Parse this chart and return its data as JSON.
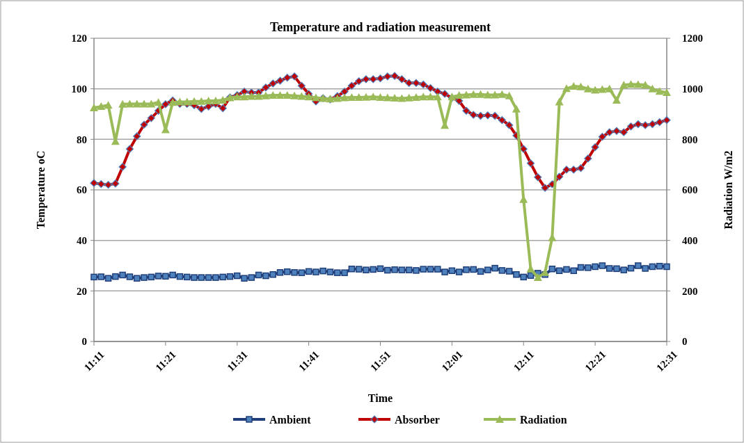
{
  "chart_data": {
    "type": "line",
    "title": "Temperature and radiation measurement",
    "xlabel": "Time",
    "ylabel": "Temperature oC",
    "y2label": "Radiation W/m2",
    "categories": [
      "11:11",
      null,
      null,
      null,
      null,
      null,
      null,
      null,
      null,
      null,
      "11:21",
      null,
      null,
      null,
      null,
      null,
      null,
      null,
      null,
      null,
      "11:31",
      null,
      null,
      null,
      null,
      null,
      null,
      null,
      null,
      null,
      "11:41",
      null,
      null,
      null,
      null,
      null,
      null,
      null,
      null,
      null,
      "11:51",
      null,
      null,
      null,
      null,
      null,
      null,
      null,
      null,
      null,
      "12:01",
      null,
      null,
      null,
      null,
      null,
      null,
      null,
      null,
      null,
      "12:11",
      null,
      null,
      null,
      null,
      null,
      null,
      null,
      null,
      null,
      "12:21",
      null,
      null,
      null,
      null,
      null,
      null,
      null,
      null,
      null,
      "12:31"
    ],
    "ylim": [
      0,
      120
    ],
    "yticks": [
      0,
      20,
      40,
      60,
      80,
      100,
      120
    ],
    "y2lim": [
      0,
      1200
    ],
    "y2ticks": [
      0,
      200,
      400,
      600,
      800,
      1000,
      1200
    ],
    "grid": "y",
    "legend": "bottom",
    "line_style": "solid",
    "series": [
      {
        "name": "Ambient",
        "color": "#1f3f7a",
        "marker": "square",
        "values": [
          25.5,
          25.6,
          25,
          25.7,
          26.3,
          25.6,
          25,
          25.3,
          25.5,
          25.9,
          25.8,
          26.3,
          25.7,
          25.5,
          25.3,
          25.3,
          25.3,
          25.3,
          25.5,
          25.7,
          26,
          25,
          25.3,
          26.3,
          26,
          26.5,
          27.3,
          27.6,
          27.3,
          27.2,
          27.7,
          27.5,
          27.9,
          27.5,
          27.2,
          27.2,
          28.7,
          28.6,
          28.3,
          28.5,
          28.8,
          28.2,
          28.4,
          28.3,
          28.3,
          28.1,
          28.6,
          28.6,
          28.6,
          27.5,
          28,
          27.5,
          28.4,
          28.5,
          27.7,
          28.3,
          29,
          28.1,
          27.8,
          26.5,
          25.5,
          26.1,
          27,
          26.5,
          28.7,
          28,
          28.5,
          28,
          29.3,
          29.2,
          29.6,
          30,
          28.9,
          28.8,
          28.3,
          29,
          30,
          28.9,
          29.6,
          29.8,
          29.6
        ]
      },
      {
        "name": "Absorber",
        "color": "#c00000",
        "marker": "diamond",
        "values": [
          62.7,
          62.3,
          62,
          62.5,
          69.1,
          76.2,
          81.2,
          85.8,
          88.4,
          91.3,
          93.9,
          95.4,
          94,
          94,
          93.5,
          92,
          93,
          94,
          92.3,
          96.6,
          97.5,
          98.9,
          98.5,
          98.5,
          100.5,
          102.1,
          103.2,
          104.4,
          104.9,
          101.2,
          98,
          95,
          96.3,
          95.8,
          97.1,
          98.9,
          101.2,
          103,
          103.8,
          103.8,
          104.1,
          104.9,
          105.1,
          103.8,
          102.3,
          102.3,
          101.7,
          100.3,
          98.9,
          98,
          96.4,
          95.2,
          91.3,
          89.7,
          89.3,
          89.5,
          89.3,
          87.6,
          85.6,
          81.5,
          76.2,
          70.5,
          65,
          60.8,
          62.2,
          65.2,
          68,
          68,
          68.6,
          72.4,
          76.9,
          81,
          82.8,
          83.3,
          82.8,
          85.1,
          86,
          85.6,
          86,
          86.8,
          87.6
        ]
      },
      {
        "name": "Radiation",
        "color": "#9bbb59",
        "marker": "triangle",
        "axis": "y2",
        "values": [
          925,
          930,
          935,
          792,
          939,
          940,
          940,
          940,
          940,
          946,
          838,
          946,
          948,
          948,
          950,
          950,
          952,
          952,
          955,
          965,
          968,
          968,
          970,
          970,
          972,
          974,
          974,
          974,
          972,
          970,
          968,
          965,
          962,
          960,
          962,
          965,
          966,
          966,
          967,
          968,
          966,
          965,
          963,
          962,
          964,
          966,
          968,
          968,
          968,
          855,
          968,
          974,
          976,
          978,
          978,
          976,
          976,
          978,
          972,
          920,
          562,
          287,
          253,
          273,
          411,
          948,
          1001,
          1010,
          1008,
          1000,
          995,
          998,
          1000,
          955,
          1015,
          1018,
          1017,
          1015,
          1000,
          990,
          985
        ]
      }
    ]
  }
}
